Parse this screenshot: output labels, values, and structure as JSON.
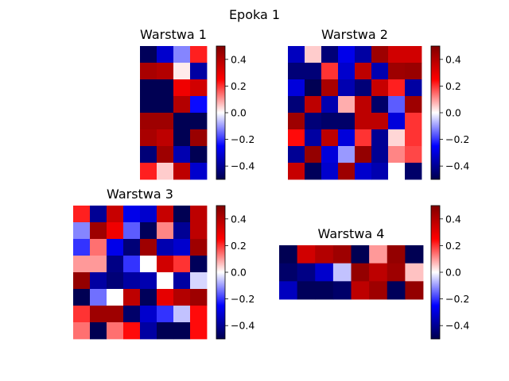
{
  "figure": {
    "title": "Epoka 1",
    "colormap": "seismic",
    "cmap_colors": [
      "#00004c",
      "#0000ff",
      "#ffffff",
      "#ff0000",
      "#800000"
    ]
  },
  "chart_data": [
    {
      "type": "heatmap",
      "title": "Warstwa 1",
      "vmin": -0.5,
      "vmax": 0.5,
      "colorbar_ticks": [
        0.4,
        0.2,
        0.0,
        -0.2,
        -0.4
      ],
      "colorbar_tick_labels": [
        "0.4",
        "0.2",
        "0.0",
        "−0.2",
        "−0.4"
      ],
      "rows": 8,
      "cols": 4,
      "values": [
        [
          -0.48,
          -0.32,
          -0.12,
          0.22
        ],
        [
          0.42,
          0.4,
          0.02,
          -0.38
        ],
        [
          -0.49,
          -0.49,
          0.28,
          0.34
        ],
        [
          -0.49,
          -0.49,
          0.4,
          -0.24
        ],
        [
          0.44,
          0.44,
          -0.49,
          -0.49
        ],
        [
          0.42,
          0.38,
          -0.49,
          0.45
        ],
        [
          -0.44,
          0.44,
          -0.36,
          -0.49
        ],
        [
          0.22,
          0.05,
          0.38,
          -0.32
        ]
      ]
    },
    {
      "type": "heatmap",
      "title": "Warstwa 2",
      "vmin": -0.5,
      "vmax": 0.5,
      "colorbar_ticks": [
        0.4,
        0.2,
        0.0,
        -0.2,
        -0.4
      ],
      "colorbar_tick_labels": [
        "0.4",
        "0.2",
        "0.0",
        "−0.2",
        "−0.4"
      ],
      "rows": 8,
      "cols": 8,
      "values": [
        [
          -0.34,
          0.05,
          -0.44,
          -0.28,
          -0.38,
          0.44,
          0.34,
          0.34
        ],
        [
          -0.44,
          -0.44,
          0.2,
          -0.32,
          0.38,
          -0.36,
          0.44,
          0.45
        ],
        [
          -0.3,
          -0.49,
          0.42,
          -0.36,
          -0.44,
          0.36,
          0.22,
          -0.38
        ],
        [
          -0.44,
          0.38,
          -0.36,
          0.08,
          0.38,
          -0.46,
          -0.16,
          0.44
        ],
        [
          0.44,
          -0.44,
          -0.46,
          -0.46,
          0.38,
          0.38,
          -0.3,
          0.2
        ],
        [
          0.24,
          -0.38,
          0.38,
          -0.3,
          0.2,
          -0.4,
          0.04,
          0.2
        ],
        [
          -0.4,
          0.46,
          -0.3,
          -0.1,
          0.46,
          -0.4,
          0.12,
          0.18
        ],
        [
          0.36,
          -0.48,
          -0.32,
          0.44,
          -0.32,
          -0.36,
          0.0,
          -0.46
        ]
      ]
    },
    {
      "type": "heatmap",
      "title": "Warstwa 3",
      "vmin": -0.5,
      "vmax": 0.5,
      "colorbar_ticks": [
        0.4,
        0.2,
        0.0,
        -0.2,
        -0.4
      ],
      "colorbar_tick_labels": [
        "0.4",
        "0.2",
        "0.0",
        "−0.2",
        "−0.4"
      ],
      "rows": 8,
      "cols": 8,
      "values": [
        [
          0.22,
          -0.4,
          0.36,
          -0.28,
          -0.32,
          0.36,
          -0.49,
          0.38
        ],
        [
          -0.12,
          0.44,
          0.28,
          -0.16,
          -0.48,
          0.12,
          -0.4,
          0.38
        ],
        [
          -0.2,
          0.14,
          -0.28,
          -0.44,
          0.44,
          -0.36,
          -0.32,
          0.44
        ],
        [
          0.1,
          0.1,
          -0.42,
          -0.2,
          0.0,
          0.34,
          0.2,
          -0.48
        ],
        [
          0.46,
          -0.38,
          -0.44,
          -0.38,
          -0.36,
          0.0,
          -0.38,
          -0.04
        ],
        [
          -0.49,
          -0.14,
          0.0,
          0.38,
          -0.48,
          0.3,
          0.4,
          0.44
        ],
        [
          0.2,
          0.44,
          0.44,
          -0.46,
          -0.32,
          -0.2,
          -0.06,
          0.24
        ],
        [
          0.14,
          -0.49,
          0.14,
          0.24,
          -0.38,
          -0.49,
          -0.49,
          0.24
        ]
      ]
    },
    {
      "type": "heatmap",
      "title": "Warstwa 4",
      "vmin": -0.5,
      "vmax": 0.5,
      "colorbar_ticks": [
        0.4,
        0.2,
        0.0,
        -0.2,
        -0.4
      ],
      "colorbar_tick_labels": [
        "0.4",
        "0.2",
        "0.0",
        "−0.2",
        "−0.4"
      ],
      "rows": 3,
      "cols": 8,
      "values": [
        [
          -0.49,
          0.34,
          0.4,
          0.44,
          -0.49,
          0.1,
          0.46,
          -0.49
        ],
        [
          -0.46,
          -0.42,
          -0.32,
          -0.06,
          0.46,
          0.38,
          0.44,
          0.06
        ],
        [
          -0.34,
          -0.48,
          -0.48,
          -0.46,
          0.38,
          0.44,
          -0.48,
          0.46
        ]
      ]
    }
  ]
}
